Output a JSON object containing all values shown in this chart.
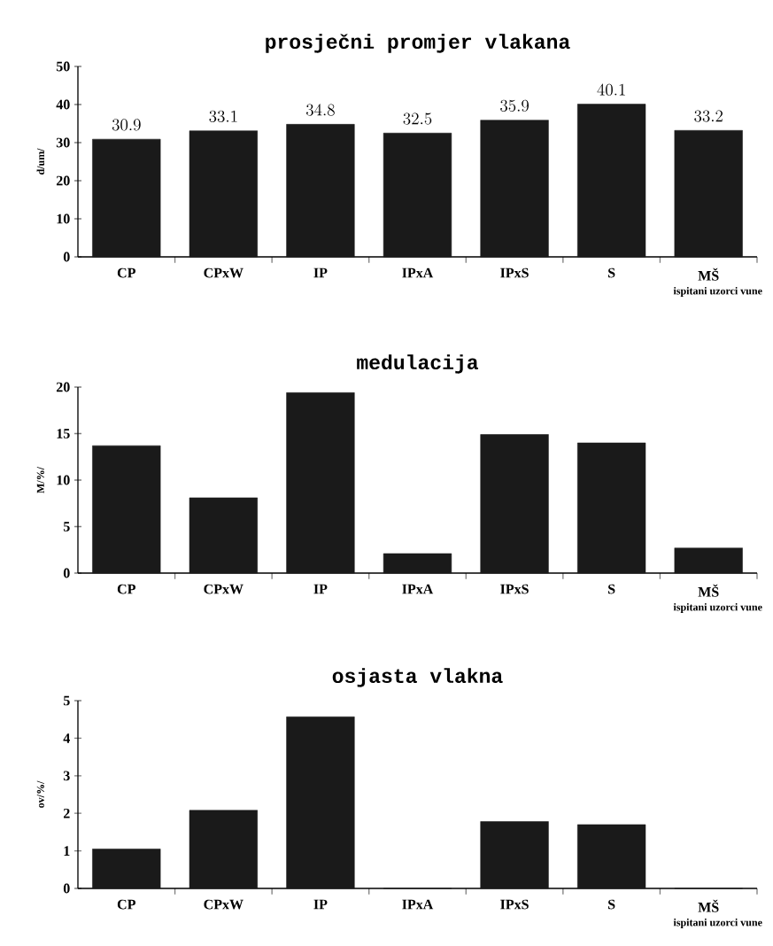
{
  "chart_data": [
    {
      "type": "bar",
      "title": "prosječni promjer vlakana",
      "xlabel": "ispitani uzorci vune",
      "ylabel": "d/um/",
      "categories": [
        "CP",
        "CPxW",
        "IP",
        "IPxA",
        "IPxS",
        "S",
        "MŠ"
      ],
      "values": [
        30.9,
        33.1,
        34.8,
        32.5,
        35.9,
        40.1,
        33.2
      ],
      "color": "#1a1a1a",
      "ylim": [
        0,
        50
      ],
      "yticks": [
        0,
        10,
        20,
        30,
        40,
        50
      ],
      "data_labels": true
    },
    {
      "type": "bar",
      "title": "medulacija",
      "xlabel": "ispitani uzorci vune",
      "ylabel": "M/%/",
      "categories": [
        "CP",
        "CPxW",
        "IP",
        "IPxA",
        "IPxS",
        "S",
        "MŠ"
      ],
      "values": [
        13.7,
        8.1,
        19.4,
        2.1,
        14.9,
        14.0,
        2.7
      ],
      "color": "#1a1a1a",
      "ylim": [
        0,
        20
      ],
      "yticks": [
        0,
        5,
        10,
        15,
        20
      ]
    },
    {
      "type": "bar",
      "title": "osjasta vlakna",
      "xlabel": "ispitani uzorci vune",
      "ylabel": "ov/%/",
      "categories": [
        "CP",
        "CPxW",
        "IP",
        "IPxA",
        "IPxS",
        "S",
        "MŠ"
      ],
      "values": [
        1.05,
        2.08,
        4.57,
        0,
        1.78,
        1.7,
        0
      ],
      "color": "#1a1a1a",
      "ylim": [
        0,
        5
      ],
      "yticks": [
        0,
        1,
        2,
        3,
        4,
        5
      ]
    }
  ]
}
